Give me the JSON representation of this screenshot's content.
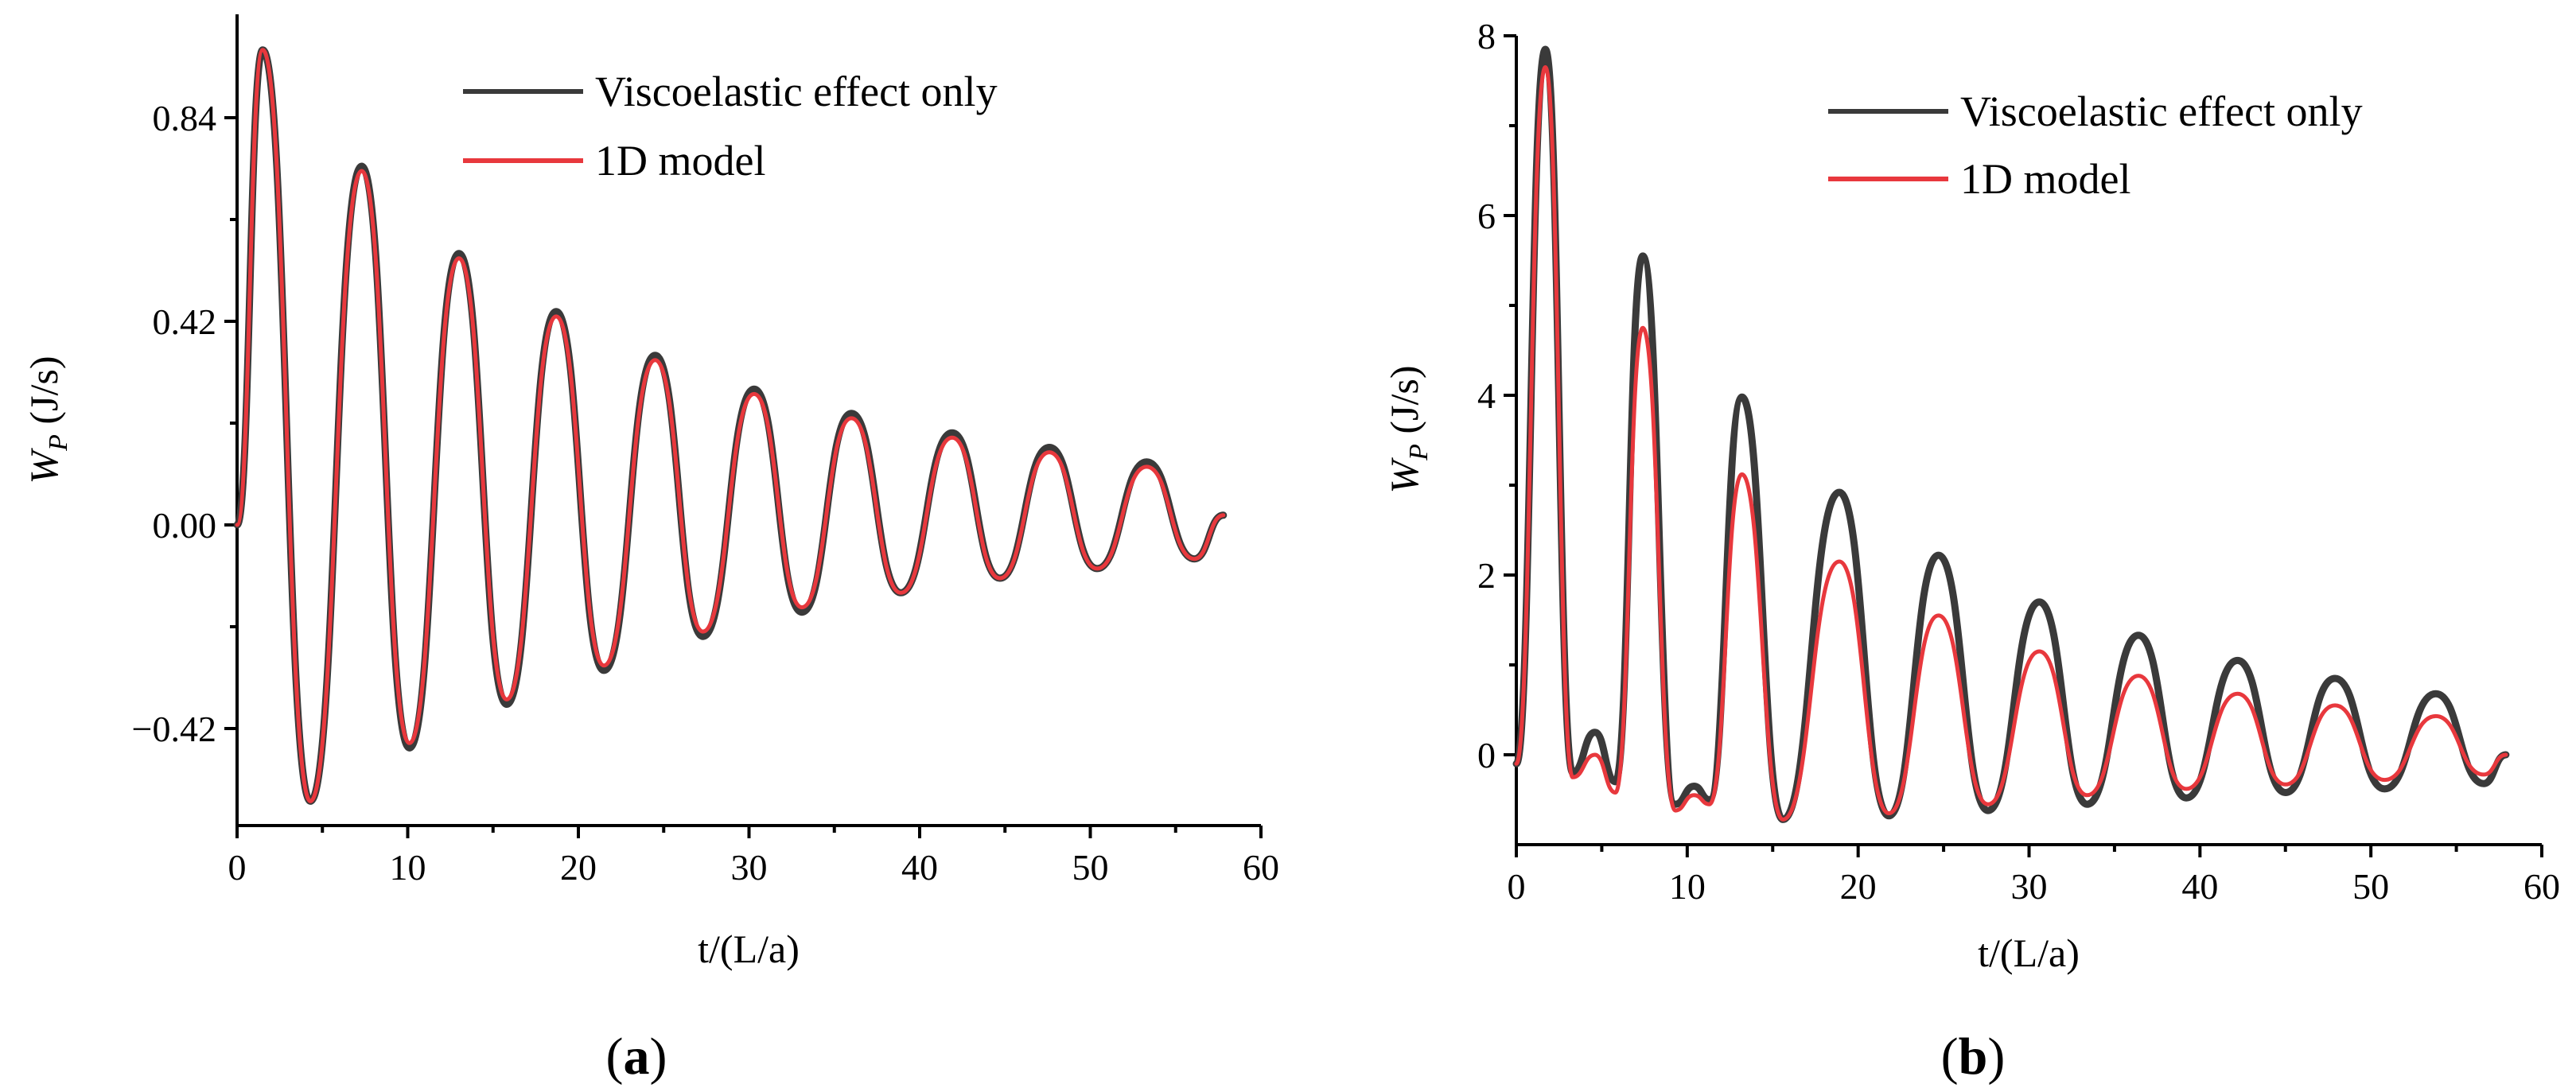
{
  "chart_data": [
    {
      "type": "line",
      "panel_label": "a",
      "xlabel": "t/(L/a)",
      "ylabel_main": "W",
      "ylabel_sub": "P",
      "ylabel_unit": " (J/s)",
      "xlim": [
        0,
        60
      ],
      "ylim": [
        -0.63,
        1.0
      ],
      "x_ticks": [
        0,
        10,
        20,
        30,
        40,
        50,
        60
      ],
      "y_ticks": [
        {
          "value": 0.84,
          "label": "0.84"
        },
        {
          "value": 0.42,
          "label": "0.42"
        },
        {
          "value": 0.0,
          "label": "0.00"
        },
        {
          "value": -0.42,
          "label": "−0.42"
        }
      ],
      "legend_position": "top-right",
      "series": [
        {
          "name": "Viscoelastic effect only",
          "color": "#3a3a3a",
          "x": [
            0,
            1.5,
            4.3,
            7.3,
            10.1,
            13.0,
            15.8,
            18.7,
            21.5,
            24.5,
            27.3,
            30.3,
            33.1,
            36.0,
            38.9,
            41.9,
            44.7,
            47.6,
            50.4,
            53.3,
            56.1,
            57.8
          ],
          "y": [
            0,
            0.98,
            -0.57,
            0.74,
            -0.46,
            0.56,
            -0.37,
            0.44,
            -0.3,
            0.35,
            -0.23,
            0.28,
            -0.18,
            0.23,
            -0.14,
            0.19,
            -0.11,
            0.16,
            -0.09,
            0.13,
            -0.07,
            0.02
          ]
        },
        {
          "name": "1D model",
          "color": "#e8383d",
          "x": [
            0,
            1.5,
            4.3,
            7.3,
            10.1,
            13.0,
            15.8,
            18.7,
            21.5,
            24.5,
            27.3,
            30.3,
            33.1,
            36.0,
            38.9,
            41.9,
            44.7,
            47.6,
            50.4,
            53.3,
            56.1,
            57.8
          ],
          "y": [
            0,
            0.98,
            -0.57,
            0.73,
            -0.45,
            0.55,
            -0.36,
            0.43,
            -0.29,
            0.34,
            -0.22,
            0.27,
            -0.17,
            0.22,
            -0.14,
            0.18,
            -0.11,
            0.15,
            -0.09,
            0.12,
            -0.07,
            0.02
          ]
        }
      ]
    },
    {
      "type": "line",
      "panel_label": "b",
      "xlabel": "t/(L/a)",
      "ylabel_main": "W",
      "ylabel_sub": "P",
      "ylabel_unit": " (J/s)",
      "xlim": [
        0,
        60
      ],
      "ylim": [
        -0.85,
        8.0
      ],
      "x_ticks": [
        0,
        10,
        20,
        30,
        40,
        50,
        60
      ],
      "y_ticks": [
        {
          "value": 0,
          "label": "0"
        },
        {
          "value": 2,
          "label": "2"
        },
        {
          "value": 4,
          "label": "4"
        },
        {
          "value": 6,
          "label": "6"
        },
        {
          "value": 8,
          "label": "8"
        }
      ],
      "legend_position": "top-right",
      "series": [
        {
          "name": "Viscoelastic effect only",
          "color": "#3a3a3a",
          "x": [
            0,
            1.7,
            3.3,
            4.6,
            5.8,
            7.4,
            9.3,
            10.4,
            11.3,
            13.2,
            15.6,
            18.9,
            21.8,
            24.7,
            27.6,
            30.6,
            33.4,
            36.4,
            39.2,
            42.2,
            45.0,
            47.9,
            50.8,
            53.8,
            56.6,
            57.9
          ],
          "y": [
            -0.1,
            7.85,
            -0.2,
            0.25,
            -0.3,
            5.55,
            -0.55,
            -0.35,
            -0.5,
            3.98,
            -0.72,
            2.92,
            -0.68,
            2.22,
            -0.62,
            1.7,
            -0.55,
            1.33,
            -0.48,
            1.05,
            -0.42,
            0.85,
            -0.38,
            0.68,
            -0.32,
            0.0
          ]
        },
        {
          "name": "1D model",
          "color": "#e8383d",
          "x": [
            0,
            1.7,
            3.3,
            4.6,
            5.8,
            7.4,
            9.3,
            10.4,
            11.3,
            13.2,
            15.6,
            18.9,
            21.8,
            24.7,
            27.6,
            30.6,
            33.4,
            36.4,
            39.2,
            42.2,
            45.0,
            47.9,
            50.8,
            53.8,
            56.6,
            57.9
          ],
          "y": [
            -0.1,
            7.65,
            -0.25,
            0.0,
            -0.42,
            4.75,
            -0.62,
            -0.45,
            -0.55,
            3.12,
            -0.72,
            2.15,
            -0.65,
            1.55,
            -0.55,
            1.15,
            -0.45,
            0.88,
            -0.38,
            0.68,
            -0.33,
            0.55,
            -0.28,
            0.43,
            -0.22,
            0.0
          ]
        }
      ]
    }
  ]
}
